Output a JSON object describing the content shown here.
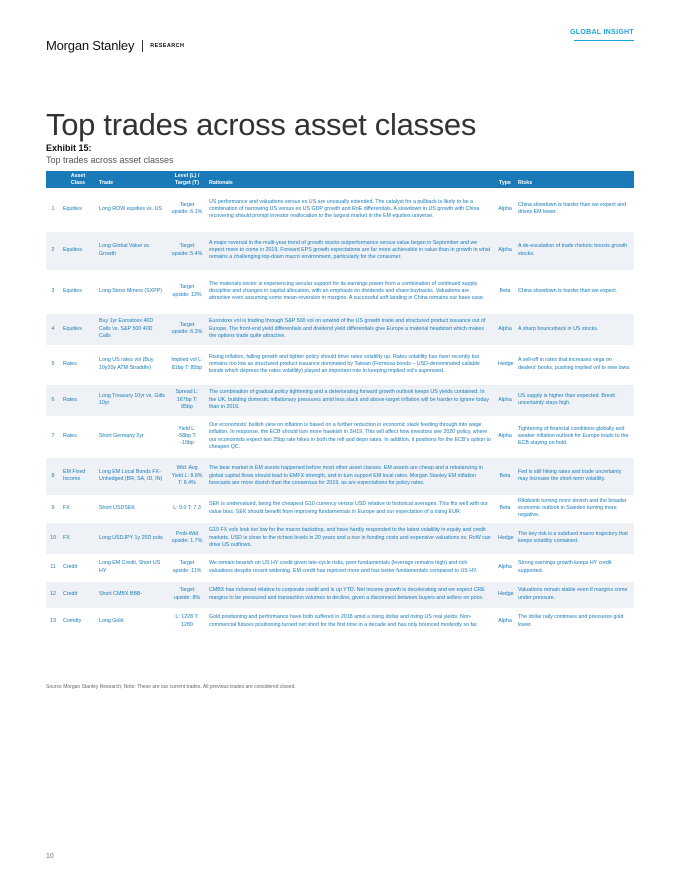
{
  "header": {
    "brand": "Morgan Stanley",
    "division": "RESEARCH",
    "badge": "GLOBAL INSIGHT"
  },
  "title": "Top trades across asset classes",
  "exhibit": {
    "label": "Exhibit 15:",
    "caption": "Top trades across asset classes"
  },
  "table": {
    "columns": {
      "num": "",
      "asset": "Asset Class",
      "trade": "Trade",
      "level": "Level (L) / Target (T)",
      "rationale": "Rationale",
      "type": "Type",
      "risks": "Risks"
    },
    "rows": [
      {
        "num": "1",
        "asset": "Equities",
        "trade": "Long ROW equities vs. US",
        "level": "Target upside: 6.1%",
        "rationale": "US performance and valuations versus ex US are unusually extended. The catalyst for a pullback is likely to be a combination of narrowing US versus ex US GDP growth and RoE differentials. A slowdown in US growth with China recovering should prompt investor reallocation to the largest market in the EM equities universe.",
        "type": "Alpha",
        "risks": "China slowdown is harder than we expect and drives EM lower."
      },
      {
        "num": "2",
        "asset": "Equities",
        "trade": "Long Global Value vs. Growth",
        "level": "Target upside: 5.4%",
        "rationale": "A major reversal in the multi-year trend of growth stocks outperformance versus value began in September and we expect more to come in 2019. Forward EPS growth expectations are far more achievable in value than in growth in what remains a challenging top-down macro environment, particularly for the consumer.",
        "type": "Alpha",
        "risks": "A de-escalation of trade rhetoric boosts growth stocks."
      },
      {
        "num": "3",
        "asset": "Equities",
        "trade": "Long Stoxx Miners (SXPP)",
        "level": "Target upside: 13%",
        "rationale": "The materials sector is experiencing secular support for its earnings power from a combination of continued supply discipline and changes in capital allocation, with an emphasis on dividends and share buybacks. Valuations are attractive even assuming some mean-reversion in margins. A successful soft landing in China remains our base case.",
        "type": "Beta",
        "risks": "China slowdown is harder than we expect."
      },
      {
        "num": "4",
        "asset": "Equities",
        "trade": "Buy 1yr Eurostoxx 40D Calls vs. S&P 500 40D Calls",
        "level": "Target upside: 6.3%",
        "rationale": "Eurostoxx vol is trading through S&P 500 vol on unwind of the US growth trade and structured product issuance out of Europe. The front-end yield differentials and dividend yield differentials give Europe a material headstart which makes the options trade quite attractive.",
        "type": "Alpha",
        "risks": "A sharp bounceback in US stocks."
      },
      {
        "num": "5",
        "asset": "Rates",
        "trade": "Long US rates vol (Buy 10y20y ATM Straddle)",
        "level": "Implied vol L: 81bp T: 85bp",
        "rationale": "Rising inflation, falling growth and tighter policy should drive rates volatility up. Rates volatility has risen recently but remains too low as structured product issuance dominated by Taiwan (Formosa bonds – USD-denominated callable bonds which depress the rates volatility) played an important role in keeping implied vol's supressed.",
        "type": "Hedge",
        "risks": "A sell-off in rates that increases vega on dealers' books, pushing implied vol to new lows."
      },
      {
        "num": "6",
        "asset": "Rates",
        "trade": "Long Treasury 10yr vs. Gilts 10yr",
        "level": "Spread L: 167bp T: 85bp",
        "rationale": "The combination of gradual policy tightening and a deteriorating forward growth outlook keeps US yields contained. In the UK, building domestic inflationary pressures amid less slack and above-target inflation will be harder to ignore today than in 2016.",
        "type": "Alpha",
        "risks": "US supply is higher than expected. Brexit uncertainty stays high."
      },
      {
        "num": "7",
        "asset": "Rates",
        "trade": "Short Germany 2yr",
        "level": "Yield L: -58bp T: -10bp",
        "rationale": "Our economists' bullish view on inflation is based on a further reduction in economic slack feeding through into wage inflation. In response, the ECB should turn more hawkish in 2H19. This will affect how investors see 2020 policy, where our economists expect two 25bp rate hikes in both the refi and depo rates. In addition, it positions for the ECB's option to cheapen QC.",
        "type": "Alpha",
        "risks": "Tightening of financial conditions globally and weaker inflation outlook for Europe leads to the ECB staying on hold."
      },
      {
        "num": "8",
        "asset": "EM Fixed Income",
        "trade": "Long EM Local Bonds FX-Unhedged (BR, SA, ID, IN)",
        "level": "Wtd. Avg Yield L: 8.8% T: 8.4%",
        "rationale": "The bear market in EM assets happened before most other asset classes. EM assets are cheap and a rebalancing in global capital flows should lead to EMFX strength, and in turn support EM local rates. Morgan Stanley EM inflation forecasts are more dovish than the consensus for 2019, as are expectations for policy rates.",
        "type": "Beta",
        "risks": "Fed is still hiking rates and trade uncertainty may increase the short-term volatility."
      },
      {
        "num": "9",
        "asset": "FX",
        "trade": "Short USDSEK",
        "level": "L: 9.0 T: 7.3",
        "rationale": "SEK is undervalued, being the cheapest G10 currency versus USD relative to historical averages. This fits well with our value bias. SEK should benefit from improving fundamentals in Europe and our expectation of a rising EUR.",
        "type": "Beta",
        "risks": "Riksbank turning more dovish and the broader economic outlook in Sweden turning more negative."
      },
      {
        "num": "10",
        "asset": "FX",
        "trade": "Long USDJPY 1y 25D puts",
        "level": "Prob-Wtd upside: 1.7%",
        "rationale": "G10 FX vols look too low for the macro backdrop, and have hardly responded to the latest volatility in equity and credit markets. USD is close to the richest levels in 20 years and a rise in funding costs and expensive valuations vs. RoW can drive US outflows.",
        "type": "Hedge",
        "risks": "The key risk is a subdued macro trajectory that keeps volatility contained."
      },
      {
        "num": "11",
        "asset": "Credit",
        "trade": "Long EM Credit, Short US HY",
        "level": "Target upside: 11%",
        "rationale": "We remain bearish on US HY credit given late-cycle risks, poor fundamentals (leverage remains high) and rich valuations despite recent widening. EM credit has repriced more and has better fundamentals compared to US HY.",
        "type": "Alpha",
        "risks": "Strong earnings growth keeps HY credit supported."
      },
      {
        "num": "12",
        "asset": "Credit",
        "trade": "Short CMBX BBB-",
        "level": "Target upside: 8%",
        "rationale": "CMBX has richened relative to corporate credit and is up YTD. Net income growth is decelerating and we expect CRE margins to be pressured and transaction volumes to decline, given a disconnect between buyers and sellers on price.",
        "type": "Hedge",
        "risks": "Valuations remain stable even if margins come under pressure."
      },
      {
        "num": "13",
        "asset": "Comdty",
        "trade": "Long Gold",
        "level": "L: 1228 T: 1280",
        "rationale": "Gold positioning and performance have both suffered in 2018 amid a rising dollar and rising US real yields. Non-commercial futures positioning turned net short for the first time in a decade and has only bounced modestly so far.",
        "type": "Alpha",
        "risks": "The dollar rally continues and pressures gold lower."
      }
    ]
  },
  "source_note": "Source Morgan Stanley Research; Note: These are our current trades. All previous trades are considered closed.",
  "page_number": "10"
}
